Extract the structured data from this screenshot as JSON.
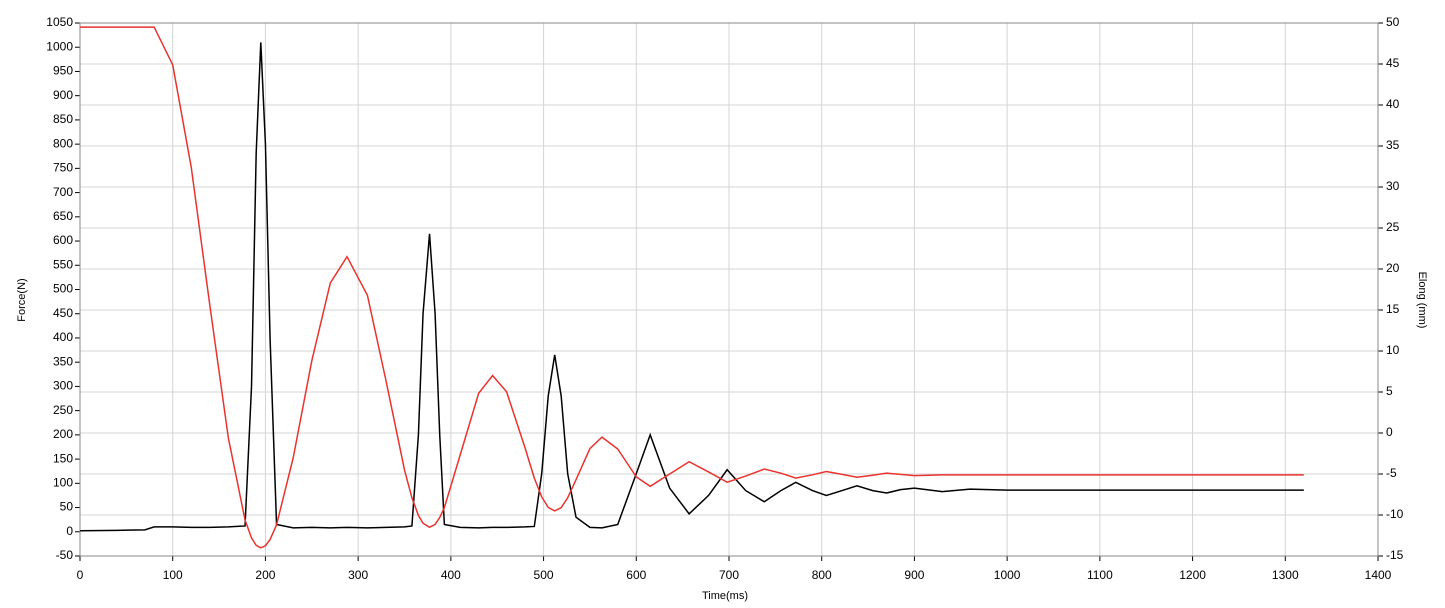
{
  "chart_data": {
    "type": "line",
    "x_label": "Time(ms)",
    "y_label": "Force(N)",
    "y2_label": "Elong (mm)",
    "grid": true,
    "xlim": [
      0,
      1400
    ],
    "xticks": [
      0,
      100,
      200,
      300,
      400,
      500,
      600,
      700,
      800,
      900,
      1000,
      1100,
      1200,
      1300,
      1400
    ],
    "ylim": [
      -50,
      1050
    ],
    "yticks": [
      -50,
      0,
      50,
      100,
      150,
      200,
      250,
      300,
      350,
      400,
      450,
      500,
      550,
      600,
      650,
      700,
      750,
      800,
      850,
      900,
      950,
      1000,
      1050
    ],
    "y2lim": [
      -15,
      50
    ],
    "y2ticks": [
      -15,
      -10,
      -5,
      0,
      5,
      10,
      15,
      20,
      25,
      30,
      35,
      40,
      45,
      50
    ],
    "x": [
      0,
      40,
      70,
      80,
      100,
      120,
      140,
      160,
      178,
      185,
      190,
      195,
      200,
      205,
      212,
      230,
      250,
      270,
      288,
      310,
      330,
      350,
      358,
      365,
      370,
      377,
      383,
      388,
      393,
      410,
      430,
      445,
      460,
      480,
      490,
      498,
      505,
      512,
      519,
      526,
      535,
      550,
      563,
      580,
      600,
      615,
      636,
      657,
      678,
      698,
      718,
      738,
      756,
      772,
      790,
      805,
      822,
      838,
      855,
      870,
      885,
      900,
      930,
      960,
      1000,
      1100,
      1200,
      1320
    ],
    "series": [
      {
        "name": "Force",
        "color": "#000000",
        "axis": "y",
        "values": [
          2,
          3,
          4,
          10,
          10,
          9,
          9,
          10,
          12,
          300,
          780,
          1010,
          800,
          400,
          15,
          8,
          9,
          8,
          9,
          8,
          9,
          10,
          12,
          200,
          450,
          615,
          450,
          200,
          15,
          9,
          8,
          9,
          9,
          10,
          11,
          120,
          280,
          365,
          280,
          120,
          30,
          9,
          8,
          15,
          120,
          200,
          90,
          37,
          75,
          128,
          85,
          62,
          85,
          102,
          85,
          75,
          85,
          95,
          85,
          80,
          87,
          90,
          83,
          88,
          86,
          86,
          86,
          86
        ]
      },
      {
        "name": "Elong",
        "color": "#e8332e",
        "axis": "y2",
        "values": [
          49.5,
          49.5,
          49.5,
          49.5,
          44.9,
          32.4,
          15.6,
          -0.6,
          -10.6,
          -12.8,
          -13.7,
          -14,
          -13.75,
          -13,
          -11.2,
          -3,
          8.8,
          18.3,
          21.5,
          16.8,
          6.4,
          -4.5,
          -7.9,
          -10.05,
          -11,
          -11.5,
          -11.15,
          -10.3,
          -9.1,
          -2.7,
          4.85,
          7,
          5.05,
          -1.8,
          -5.5,
          -7.8,
          -9.07,
          -9.5,
          -9.1,
          -7.9,
          -5.7,
          -1.9,
          -0.5,
          -1.95,
          -5.35,
          -6.5,
          -5,
          -3.5,
          -4.75,
          -6,
          -5.25,
          -4.4,
          -4.9,
          -5.5,
          -5.1,
          -4.7,
          -5.05,
          -5.4,
          -5.15,
          -4.9,
          -5.05,
          -5.2,
          -5.1,
          -5.1,
          -5.1,
          -5.1,
          -5.1,
          -5.1
        ]
      }
    ]
  }
}
